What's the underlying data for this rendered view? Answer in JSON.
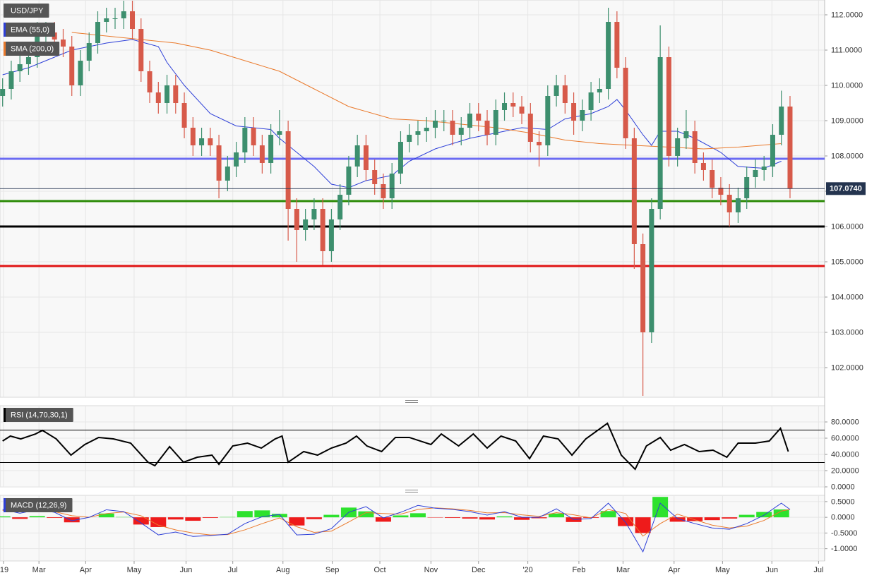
{
  "chart_data": [
    {
      "type": "candlestick",
      "title": "USD/JPY",
      "categories": [
        null,
        null,
        null,
        null,
        null,
        null,
        null,
        null,
        null,
        null,
        null,
        null,
        null,
        null,
        null,
        null,
        null,
        null,
        null,
        null,
        null,
        null,
        null,
        null,
        null,
        null,
        null,
        null,
        null,
        null,
        null,
        null,
        null,
        null,
        null,
        null,
        null,
        null,
        null,
        null,
        null,
        null,
        null,
        null,
        null,
        null,
        null,
        null,
        null,
        null,
        null,
        null,
        null,
        null,
        null,
        null,
        null,
        null,
        null,
        null,
        null,
        null,
        null,
        null,
        null,
        null,
        null,
        null,
        null,
        null,
        null,
        null,
        null,
        null,
        null,
        null,
        null,
        null,
        null,
        null,
        null,
        null,
        null,
        null,
        null,
        null,
        null,
        null,
        null,
        null,
        null,
        null
      ],
      "open": [
        109.7,
        109.9,
        110.4,
        110.6,
        110.8,
        111.5,
        111.5,
        111.3,
        111.1,
        110.0,
        110.7,
        111.2,
        111.8,
        111.9,
        111.9,
        112.1,
        111.6,
        110.4,
        109.8,
        109.5,
        110.0,
        109.5,
        108.8,
        108.3,
        108.5,
        108.3,
        107.3,
        107.7,
        108.1,
        108.8,
        108.3,
        107.8,
        108.6,
        108.7,
        106.5,
        105.9,
        106.2,
        106.5,
        105.3,
        106.2,
        106.9,
        107.7,
        108.3,
        107.6,
        107.2,
        106.8,
        107.5,
        108.4,
        108.6,
        108.7,
        108.8,
        109.0,
        109.0,
        108.6,
        108.8,
        109.2,
        109.0,
        108.6,
        109.3,
        109.5,
        109.4,
        109.2,
        108.4,
        108.3,
        109.7,
        110.0,
        109.5,
        109.0,
        109.3,
        109.8,
        109.9,
        111.8,
        110.5,
        108.5,
        105.5,
        103.0,
        106.5,
        110.8,
        108.0,
        108.5,
        108.7,
        107.8,
        107.6,
        107.1,
        106.9,
        106.4,
        106.8,
        107.4,
        107.6,
        107.7,
        108.6,
        109.4
      ],
      "high": [
        110.2,
        110.7,
        110.9,
        111.1,
        111.8,
        111.8,
        111.8,
        111.6,
        111.4,
        111.0,
        111.5,
        112.1,
        112.2,
        112.2,
        112.4,
        112.4,
        111.9,
        110.7,
        110.1,
        110.3,
        110.3,
        109.8,
        109.1,
        108.8,
        108.8,
        108.6,
        108.0,
        108.4,
        109.1,
        109.1,
        108.6,
        108.9,
        109.3,
        109.0,
        106.8,
        106.5,
        106.8,
        106.8,
        106.5,
        107.2,
        108.0,
        108.6,
        108.6,
        107.9,
        107.5,
        107.8,
        108.7,
        108.9,
        109.0,
        109.1,
        109.3,
        109.3,
        109.3,
        109.1,
        109.5,
        109.5,
        109.3,
        109.6,
        109.8,
        109.8,
        109.7,
        109.5,
        108.7,
        110.0,
        110.3,
        110.3,
        109.8,
        109.6,
        110.1,
        110.2,
        112.2,
        112.1,
        110.8,
        108.8,
        105.8,
        106.8,
        111.7,
        111.1,
        108.8,
        109.3,
        109.0,
        108.1,
        107.9,
        107.4,
        107.2,
        107.1,
        107.7,
        107.9,
        108.0,
        108.9,
        109.85,
        109.7
      ],
      "low": [
        109.4,
        109.6,
        110.1,
        110.3,
        110.5,
        111.2,
        111.0,
        110.8,
        109.7,
        109.7,
        110.4,
        110.9,
        111.5,
        111.6,
        111.6,
        111.3,
        110.1,
        109.5,
        109.2,
        109.2,
        109.2,
        108.5,
        108.0,
        108.0,
        108.0,
        106.8,
        107.0,
        107.4,
        107.8,
        108.0,
        107.5,
        107.5,
        108.3,
        105.6,
        105.0,
        105.6,
        105.9,
        104.9,
        105.0,
        105.9,
        106.6,
        107.4,
        107.3,
        106.9,
        106.5,
        106.5,
        107.2,
        108.1,
        108.3,
        108.4,
        108.5,
        108.7,
        108.3,
        108.3,
        108.5,
        108.7,
        108.3,
        108.3,
        109.0,
        109.1,
        108.9,
        108.1,
        107.7,
        108.0,
        109.4,
        109.2,
        108.6,
        108.7,
        109.0,
        109.5,
        109.6,
        110.2,
        108.2,
        104.8,
        101.2,
        102.7,
        106.2,
        107.7,
        107.7,
        108.2,
        107.5,
        107.3,
        106.8,
        106.6,
        106.0,
        106.1,
        106.5,
        107.1,
        107.3,
        107.4,
        108.3,
        106.8
      ],
      "close": [
        109.9,
        110.4,
        110.6,
        110.8,
        111.5,
        111.5,
        111.3,
        111.1,
        110.0,
        110.7,
        111.2,
        111.8,
        111.9,
        111.9,
        112.1,
        111.6,
        110.4,
        109.8,
        109.5,
        110.0,
        109.5,
        108.8,
        108.3,
        108.5,
        108.3,
        107.3,
        107.7,
        108.1,
        108.8,
        108.3,
        107.8,
        108.6,
        108.7,
        106.5,
        105.9,
        106.2,
        106.5,
        105.3,
        106.2,
        106.9,
        107.7,
        108.3,
        107.6,
        107.2,
        106.8,
        107.5,
        108.4,
        108.6,
        108.7,
        108.8,
        109.0,
        109.0,
        108.6,
        108.8,
        109.2,
        109.0,
        108.6,
        109.3,
        109.5,
        109.4,
        109.2,
        108.4,
        108.3,
        109.7,
        110.0,
        109.5,
        109.0,
        109.3,
        109.8,
        109.9,
        111.8,
        110.5,
        108.5,
        105.5,
        103.0,
        106.5,
        110.8,
        108.0,
        108.5,
        108.7,
        107.8,
        107.6,
        107.1,
        106.9,
        106.4,
        106.8,
        107.4,
        107.6,
        107.7,
        108.6,
        109.4,
        107.074
      ],
      "up_color": "#3d8f6e",
      "down_color": "#d75a4a",
      "overlays": [
        {
          "name": "EMA (55,0)",
          "color": "#2d3fd8",
          "x": [
            0,
            3,
            5,
            8,
            12,
            15,
            18,
            19,
            21,
            24,
            27,
            31,
            32,
            34,
            36,
            38,
            40,
            42,
            45,
            47,
            50,
            54,
            57,
            60,
            63,
            65,
            68,
            70,
            71,
            72,
            74,
            75,
            76,
            78,
            80,
            83,
            85,
            88,
            90
          ],
          "values": [
            110.3,
            110.5,
            110.7,
            111.0,
            111.2,
            111.3,
            111.1,
            110.65,
            110.0,
            109.2,
            108.85,
            108.75,
            108.5,
            108.1,
            107.7,
            107.2,
            107.1,
            107.3,
            107.45,
            107.85,
            108.2,
            108.5,
            108.65,
            108.8,
            108.75,
            109.05,
            109.2,
            109.4,
            109.6,
            109.3,
            108.6,
            108.3,
            108.7,
            108.7,
            108.5,
            108.1,
            107.7,
            107.65,
            107.85
          ]
        },
        {
          "name": "SMA (200,0)",
          "color": "#ea7a2c",
          "x": [
            8,
            16,
            20,
            24,
            28,
            32,
            36,
            40,
            45,
            49,
            53,
            57,
            61,
            65,
            69,
            73,
            77,
            81,
            85,
            90
          ],
          "values": [
            111.5,
            111.3,
            111.2,
            111.0,
            110.7,
            110.4,
            109.9,
            109.4,
            109.05,
            109.0,
            108.9,
            108.8,
            108.65,
            108.45,
            108.35,
            108.3,
            108.25,
            108.2,
            108.25,
            108.35
          ]
        }
      ],
      "levels": [
        {
          "value": 107.92,
          "color": "#6b6bf2"
        },
        {
          "value": 106.72,
          "color": "#2a8a05"
        },
        {
          "value": 106.0,
          "color": "#000000"
        },
        {
          "value": 104.88,
          "color": "#e01414"
        }
      ],
      "last": {
        "value": 107.074,
        "label": "107.0740"
      },
      "xlim": [
        -0.3,
        95.0
      ],
      "ylim": [
        101.16,
        112.42
      ],
      "yticks": [
        {
          "value": 112,
          "label": "112.0000"
        },
        {
          "value": 111,
          "label": "111.0000"
        },
        {
          "value": 110,
          "label": "110.0000"
        },
        {
          "value": 109,
          "label": "109.0000"
        },
        {
          "value": 108,
          "label": "108.0000"
        },
        {
          "value": 107,
          "label": "107.0000"
        },
        {
          "value": 106,
          "label": "106.0000"
        },
        {
          "value": 105,
          "label": "105.0000"
        },
        {
          "value": 104,
          "label": "104.0000"
        },
        {
          "value": 103,
          "label": "103.0000"
        },
        {
          "value": 102,
          "label": "102.0000"
        }
      ],
      "grid": true
    },
    {
      "type": "line",
      "title": "RSI (14,70,30,1)",
      "color": "#000000",
      "x": [
        0,
        0.9,
        2.1,
        3.8,
        4.6,
        6.2,
        7.9,
        9.5,
        11.1,
        12.8,
        14.8,
        16.8,
        17.6,
        19.3,
        20.9,
        22.5,
        24.2,
        25.0,
        26.6,
        28.3,
        29.9,
        31.5,
        32.3,
        33.0,
        34.8,
        36.4,
        38.0,
        39.7,
        40.9,
        42.1,
        43.8,
        45.4,
        47.0,
        49.5,
        50.7,
        52.7,
        54.4,
        56.0,
        57.6,
        59.3,
        60.9,
        62.5,
        64.2,
        65.8,
        67.4,
        69.9,
        71.5,
        73.1,
        74.4,
        76.0,
        77.2,
        78.8,
        80.5,
        82.1,
        83.7,
        85.0,
        87.0,
        88.6,
        89.9,
        90.8
      ],
      "values": [
        56.5,
        62.6,
        59.1,
        65.2,
        69.6,
        59.1,
        39.1,
        52.2,
        60.9,
        59.1,
        53.9,
        30.4,
        26.1,
        49.6,
        30.4,
        36.5,
        39.1,
        27.8,
        50.4,
        53.9,
        47.8,
        59.1,
        62.6,
        30.4,
        43.5,
        39.1,
        47.8,
        53.9,
        62.6,
        50.4,
        43.5,
        60.9,
        60.9,
        52.2,
        65.2,
        50.4,
        65.2,
        47.8,
        62.6,
        56.5,
        34.8,
        62.6,
        59.1,
        39.1,
        59.1,
        78.3,
        39.1,
        21.7,
        50.4,
        60.9,
        45.2,
        52.2,
        43.5,
        45.2,
        36.5,
        53.9,
        53.9,
        56.5,
        72.2,
        43.5
      ],
      "levels": [
        70,
        30
      ],
      "xlim": [
        -0.3,
        95.0
      ],
      "ylim": [
        0,
        100
      ],
      "yticks": [
        {
          "value": 80,
          "label": "80.0000"
        },
        {
          "value": 60,
          "label": "60.0000"
        },
        {
          "value": 40,
          "label": "40.0000"
        },
        {
          "value": 20,
          "label": "20.0000"
        },
        {
          "value": 0,
          "label": "0.0000"
        }
      ],
      "grid": true
    },
    {
      "type": "macd",
      "title": "MACD (12,26,9)",
      "x": [
        0,
        2,
        4,
        6,
        8,
        10,
        12,
        14,
        16,
        18,
        20,
        22,
        24,
        26,
        28,
        30,
        32,
        34,
        36,
        38,
        40,
        42,
        44,
        46,
        48,
        50,
        52,
        54,
        56,
        58,
        60,
        62,
        64,
        66,
        68,
        70,
        72,
        74,
        76,
        78,
        80,
        82,
        84,
        86,
        88,
        90,
        91
      ],
      "macd": {
        "color": "#2d3fd8",
        "values": [
          0.25,
          0.13,
          0.24,
          0.16,
          -0.11,
          0.0,
          0.24,
          0.18,
          -0.18,
          -0.56,
          -0.47,
          -0.61,
          -0.58,
          -0.54,
          -0.2,
          0.02,
          0.09,
          -0.56,
          -0.54,
          -0.36,
          0.16,
          0.34,
          -0.02,
          0.16,
          0.38,
          0.29,
          0.25,
          0.18,
          0.07,
          0.18,
          0.0,
          0.0,
          0.27,
          -0.07,
          -0.04,
          0.45,
          -0.16,
          -1.1,
          0.45,
          -0.04,
          -0.2,
          -0.34,
          -0.38,
          -0.2,
          0.07,
          0.45,
          0.25
        ]
      },
      "signal": {
        "color": "#ea7a2c",
        "values": [
          0.22,
          0.18,
          0.2,
          0.18,
          0.05,
          0.0,
          0.12,
          0.17,
          0.05,
          -0.25,
          -0.4,
          -0.5,
          -0.56,
          -0.55,
          -0.4,
          -0.2,
          -0.02,
          -0.3,
          -0.48,
          -0.44,
          -0.15,
          0.15,
          0.12,
          0.1,
          0.25,
          0.3,
          0.27,
          0.22,
          0.14,
          0.15,
          0.08,
          0.03,
          0.15,
          0.08,
          -0.02,
          0.25,
          0.12,
          -0.6,
          -0.2,
          0.1,
          -0.08,
          -0.25,
          -0.34,
          -0.28,
          -0.1,
          0.2,
          0.25
        ]
      },
      "histogram": {
        "up_color": "#2de22d",
        "down_color": "#ee1b1b",
        "values": [
          0.03,
          -0.05,
          0.04,
          -0.02,
          -0.16,
          0.0,
          0.12,
          0.01,
          -0.23,
          -0.31,
          -0.07,
          -0.11,
          -0.02,
          0.01,
          0.2,
          0.22,
          0.11,
          -0.26,
          -0.06,
          0.08,
          0.31,
          0.19,
          -0.14,
          0.06,
          0.13,
          -0.01,
          -0.02,
          -0.04,
          -0.07,
          0.03,
          -0.08,
          -0.03,
          0.12,
          -0.15,
          -0.02,
          0.2,
          -0.28,
          -0.5,
          0.65,
          -0.14,
          -0.12,
          -0.09,
          -0.04,
          0.08,
          0.17,
          0.25,
          0.0
        ]
      },
      "xlim": [
        -0.3,
        95.0
      ],
      "ylim": [
        -1.39,
        0.7
      ],
      "yticks": [
        {
          "value": 0.5,
          "label": "0.5000"
        },
        {
          "value": 0,
          "label": "0.0000"
        },
        {
          "value": -0.5,
          "label": "-0.5000"
        },
        {
          "value": -1,
          "label": "-1.0000"
        }
      ],
      "xticks": [
        {
          "value": 0.1,
          "label": "'19"
        },
        {
          "value": 4.2,
          "label": "Mar"
        },
        {
          "value": 9.6,
          "label": "Apr"
        },
        {
          "value": 15.2,
          "label": "May"
        },
        {
          "value": 21.2,
          "label": "Jun"
        },
        {
          "value": 26.6,
          "label": "Jul"
        },
        {
          "value": 32.4,
          "label": "Aug"
        },
        {
          "value": 38.1,
          "label": "Sep"
        },
        {
          "value": 43.6,
          "label": "Oct"
        },
        {
          "value": 49.5,
          "label": "Nov"
        },
        {
          "value": 55.0,
          "label": "Dec"
        },
        {
          "value": 60.7,
          "label": "'20"
        },
        {
          "value": 66.6,
          "label": "Feb"
        },
        {
          "value": 71.7,
          "label": "Mar"
        },
        {
          "value": 77.6,
          "label": "Apr"
        },
        {
          "value": 83.2,
          "label": "May"
        },
        {
          "value": 88.9,
          "label": "Jun"
        },
        {
          "value": 94.3,
          "label": "Jul"
        }
      ],
      "grid": true
    }
  ]
}
